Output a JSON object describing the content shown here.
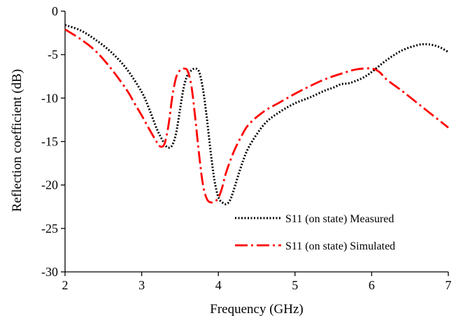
{
  "chart_data": {
    "type": "line",
    "title": "",
    "xlabel": "Frequency (GHz)",
    "ylabel": "Reflection coefficient (dB)",
    "xlim": [
      2,
      7
    ],
    "ylim": [
      -30,
      0
    ],
    "xticks": [
      2,
      3,
      4,
      5,
      6,
      7
    ],
    "yticks": [
      0,
      -5,
      -10,
      -15,
      -20,
      -25,
      -30
    ],
    "grid": false,
    "legend_position": "bottom-right",
    "series": [
      {
        "name": "S11 (on state) Measured",
        "color": "#000000",
        "style": "dotted",
        "x": [
          2.0,
          2.2,
          2.4,
          2.6,
          2.8,
          3.0,
          3.1,
          3.2,
          3.3,
          3.35,
          3.4,
          3.45,
          3.5,
          3.55,
          3.6,
          3.65,
          3.7,
          3.75,
          3.8,
          3.85,
          3.9,
          3.95,
          4.0,
          4.05,
          4.1,
          4.15,
          4.2,
          4.3,
          4.4,
          4.6,
          4.8,
          5.0,
          5.2,
          5.4,
          5.5,
          5.6,
          5.7,
          5.8,
          5.9,
          6.0,
          6.2,
          6.4,
          6.6,
          6.7,
          6.8,
          6.9,
          7.0
        ],
        "y": [
          -1.6,
          -2.2,
          -3.3,
          -4.7,
          -6.6,
          -9.3,
          -11.3,
          -13.6,
          -15.3,
          -15.7,
          -15.4,
          -14.0,
          -11.3,
          -8.7,
          -7.3,
          -6.8,
          -6.6,
          -7.0,
          -9.0,
          -12.3,
          -16.2,
          -19.5,
          -21.4,
          -22.0,
          -22.2,
          -21.8,
          -20.6,
          -17.8,
          -15.6,
          -13.0,
          -11.6,
          -10.6,
          -9.9,
          -9.1,
          -8.8,
          -8.4,
          -8.3,
          -8.0,
          -7.6,
          -7.0,
          -5.6,
          -4.5,
          -3.9,
          -3.8,
          -3.9,
          -4.2,
          -4.7
        ]
      },
      {
        "name": "S11 (on state) Simulated",
        "color": "#ff0000",
        "style": "dash-dot",
        "x": [
          2.0,
          2.2,
          2.4,
          2.6,
          2.8,
          2.9,
          3.0,
          3.1,
          3.2,
          3.25,
          3.3,
          3.35,
          3.4,
          3.45,
          3.5,
          3.55,
          3.6,
          3.65,
          3.7,
          3.75,
          3.8,
          3.85,
          3.9,
          3.95,
          4.0,
          4.05,
          4.1,
          4.2,
          4.3,
          4.4,
          4.6,
          4.8,
          5.0,
          5.2,
          5.4,
          5.6,
          5.8,
          6.0,
          6.1,
          6.2,
          6.4,
          6.6,
          6.8,
          7.0
        ],
        "y": [
          -2.1,
          -3.2,
          -4.6,
          -6.6,
          -9.0,
          -10.5,
          -12.0,
          -13.6,
          -15.1,
          -15.6,
          -15.2,
          -13.1,
          -9.8,
          -7.6,
          -6.8,
          -6.6,
          -6.9,
          -8.7,
          -12.4,
          -16.6,
          -20.0,
          -21.6,
          -22.0,
          -21.9,
          -21.5,
          -20.3,
          -18.6,
          -16.2,
          -14.4,
          -13.0,
          -11.5,
          -10.5,
          -9.5,
          -8.6,
          -7.8,
          -7.2,
          -6.7,
          -6.6,
          -7.0,
          -7.9,
          -9.2,
          -10.6,
          -12.0,
          -13.4
        ]
      }
    ]
  }
}
